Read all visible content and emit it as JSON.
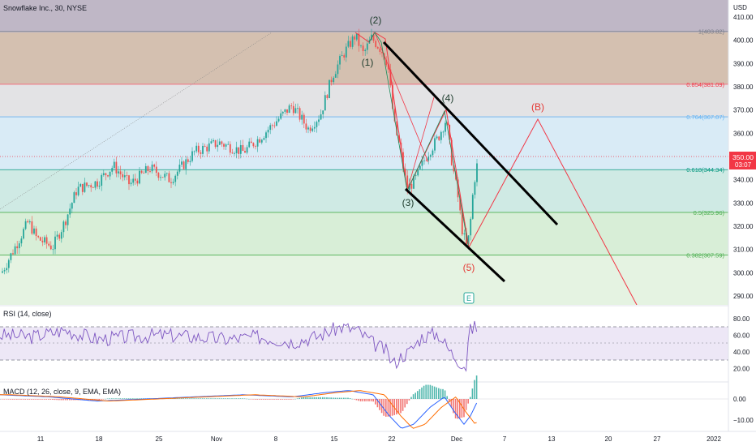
{
  "header": {
    "symbol_title": "Snowflake Inc., 30, NYSE",
    "currency": "USD"
  },
  "price_axis": {
    "ticks": [
      "410.00",
      "400.00",
      "390.00",
      "380.00",
      "370.00",
      "360.00",
      "340.00",
      "330.00",
      "320.00",
      "310.00",
      "300.00",
      "290.00"
    ],
    "current_price": "350.00",
    "countdown": "03:07"
  },
  "fib_levels": [
    {
      "label": "1(403.82)",
      "value": 403.82,
      "color": "#787b86"
    },
    {
      "label": "0.854(381.09)",
      "value": 381.09,
      "color": "#f23645"
    },
    {
      "label": "0.764(367.07)",
      "value": 367.07,
      "color": "#64b5f6"
    },
    {
      "label": "0.618(344.34)",
      "value": 344.34,
      "color": "#089981"
    },
    {
      "label": "0.5(325.96)",
      "value": 325.96,
      "color": "#4caf50"
    },
    {
      "label": "0.382(307.59)",
      "value": 307.59,
      "color": "#4caf50"
    }
  ],
  "wave_labels": {
    "w1": "(1)",
    "w2": "(2)",
    "w3": "(3)",
    "w4": "(4)",
    "w5": "(5)",
    "wB": "(B)"
  },
  "earnings_marker": "E",
  "rsi": {
    "title": "RSI (14, close)",
    "ticks": [
      "80.00",
      "60.00",
      "40.00",
      "20.00"
    ]
  },
  "macd": {
    "title": "MACD (12, 26, close, 9, EMA, EMA)",
    "ticks": [
      "0.00",
      "−10.00"
    ]
  },
  "time_axis": {
    "ticks": [
      "11",
      "18",
      "25",
      "Nov",
      "8",
      "15",
      "22",
      "Dec",
      "7",
      "13",
      "20",
      "27",
      "2022"
    ]
  },
  "colors": {
    "up": "#26a69a",
    "down": "#ef5350",
    "rsi_line": "#7e57c2",
    "macd_line": "#2962ff",
    "signal_line": "#ff6d00",
    "projection": "#f23645",
    "price_tag": "#f23645"
  }
}
